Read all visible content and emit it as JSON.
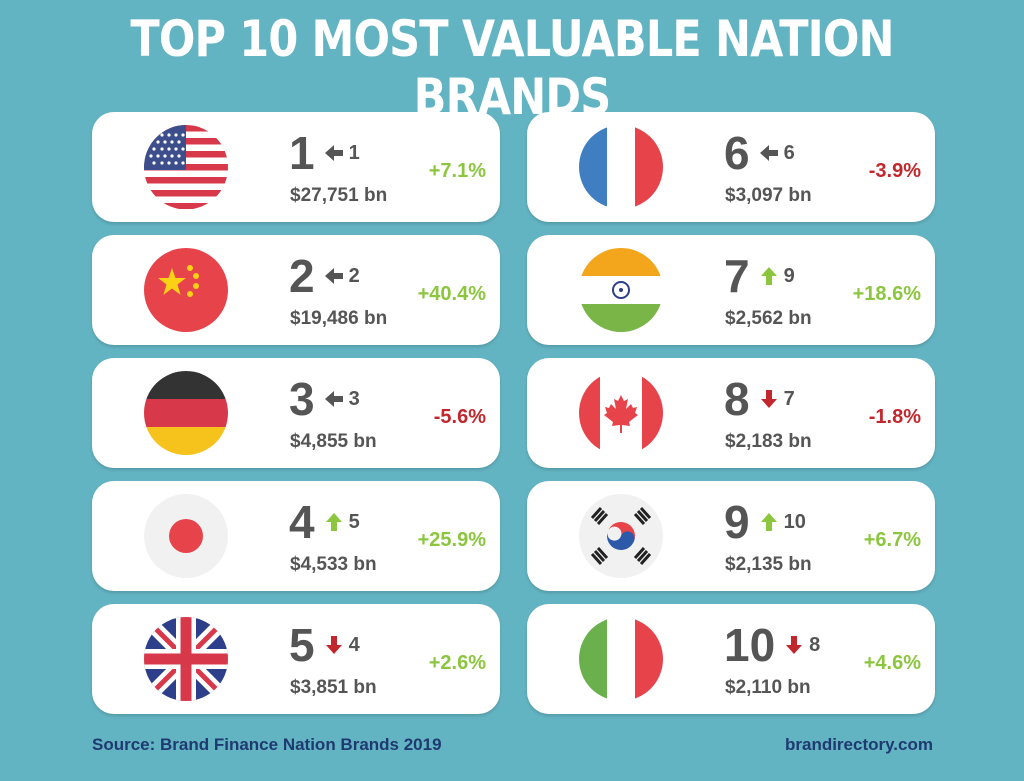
{
  "title": "TOP 10 MOST VALUABLE NATION BRANDS",
  "cards": [
    {
      "rank": 1,
      "previous_rank": 1,
      "value": "$27,751 bn",
      "change": "+7.1%"
    },
    {
      "rank": 2,
      "previous_rank": 2,
      "value": "$19,486 bn",
      "change": "+40.4%"
    },
    {
      "rank": 3,
      "previous_rank": 3,
      "value": "$4,855 bn",
      "change": "-5.6%"
    },
    {
      "rank": 4,
      "previous_rank": 5,
      "value": "$4,533 bn",
      "change": "+25.9%"
    },
    {
      "rank": 5,
      "previous_rank": 4,
      "value": "$3,851 bn",
      "change": "+2.6%"
    },
    {
      "rank": 6,
      "previous_rank": 6,
      "value": "$3,097 bn",
      "change": "-3.9%"
    },
    {
      "rank": 7,
      "previous_rank": 9,
      "value": "$2,562 bn",
      "change": "+18.6%"
    },
    {
      "rank": 8,
      "previous_rank": 7,
      "value": "$2,183 bn",
      "change": "-1.8%"
    },
    {
      "rank": 9,
      "previous_rank": 10,
      "value": "$2,135 bn",
      "change": "+6.7%"
    },
    {
      "rank": 10,
      "previous_rank": 8,
      "value": "$2,110 bn",
      "change": "+4.6%"
    }
  ],
  "footer": {
    "source": "Source: Brand Finance Nation Brands 2019",
    "site": "brandirectory.com"
  }
}
